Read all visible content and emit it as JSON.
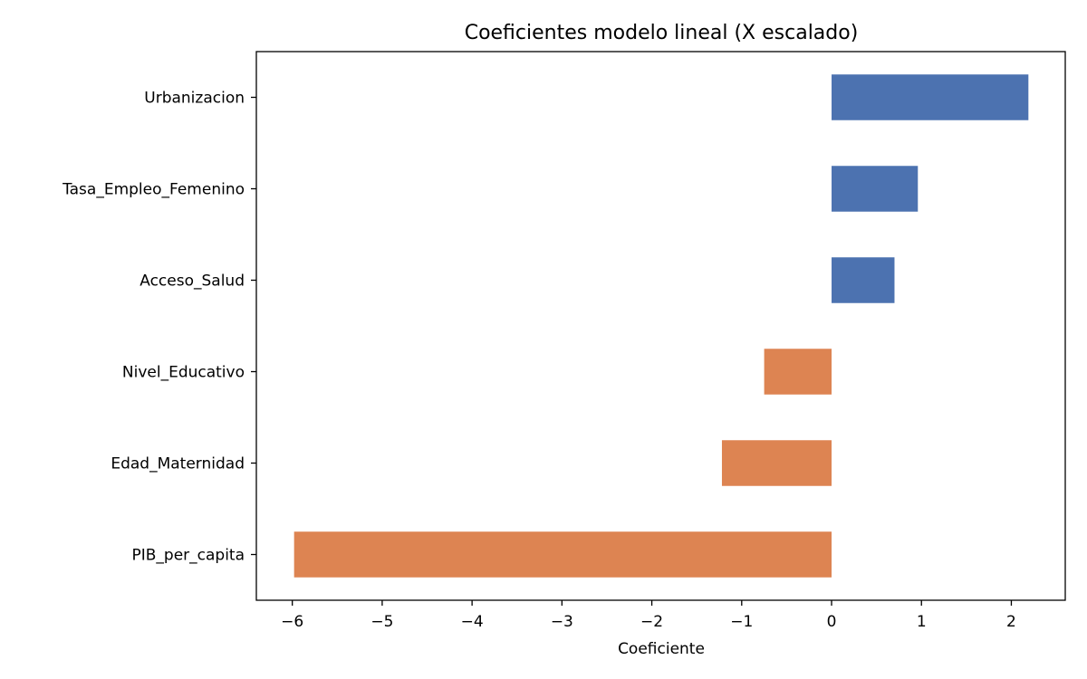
{
  "chart_data": {
    "type": "bar",
    "orientation": "horizontal",
    "title": "Coeficientes modelo lineal (X escalado)",
    "xlabel": "Coeficiente",
    "ylabel": "",
    "categories": [
      "Urbanizacion",
      "Tasa_Empleo_Femenino",
      "Acceso_Salud",
      "Nivel_Educativo",
      "Edad_Maternidad",
      "PIB_per_capita"
    ],
    "values": [
      2.19,
      0.96,
      0.7,
      -0.75,
      -1.22,
      -5.98
    ],
    "xlim": [
      -6.4,
      2.6
    ],
    "xticks": [
      -6,
      -5,
      -4,
      -3,
      -2,
      -1,
      0,
      1,
      2
    ],
    "xtick_labels": [
      "−6",
      "−5",
      "−4",
      "−3",
      "−2",
      "−1",
      "0",
      "1",
      "2"
    ],
    "grid": false,
    "legend": "none",
    "colors": {
      "positive": "#4c72b0",
      "negative": "#dd8452",
      "axis": "#000000"
    }
  }
}
